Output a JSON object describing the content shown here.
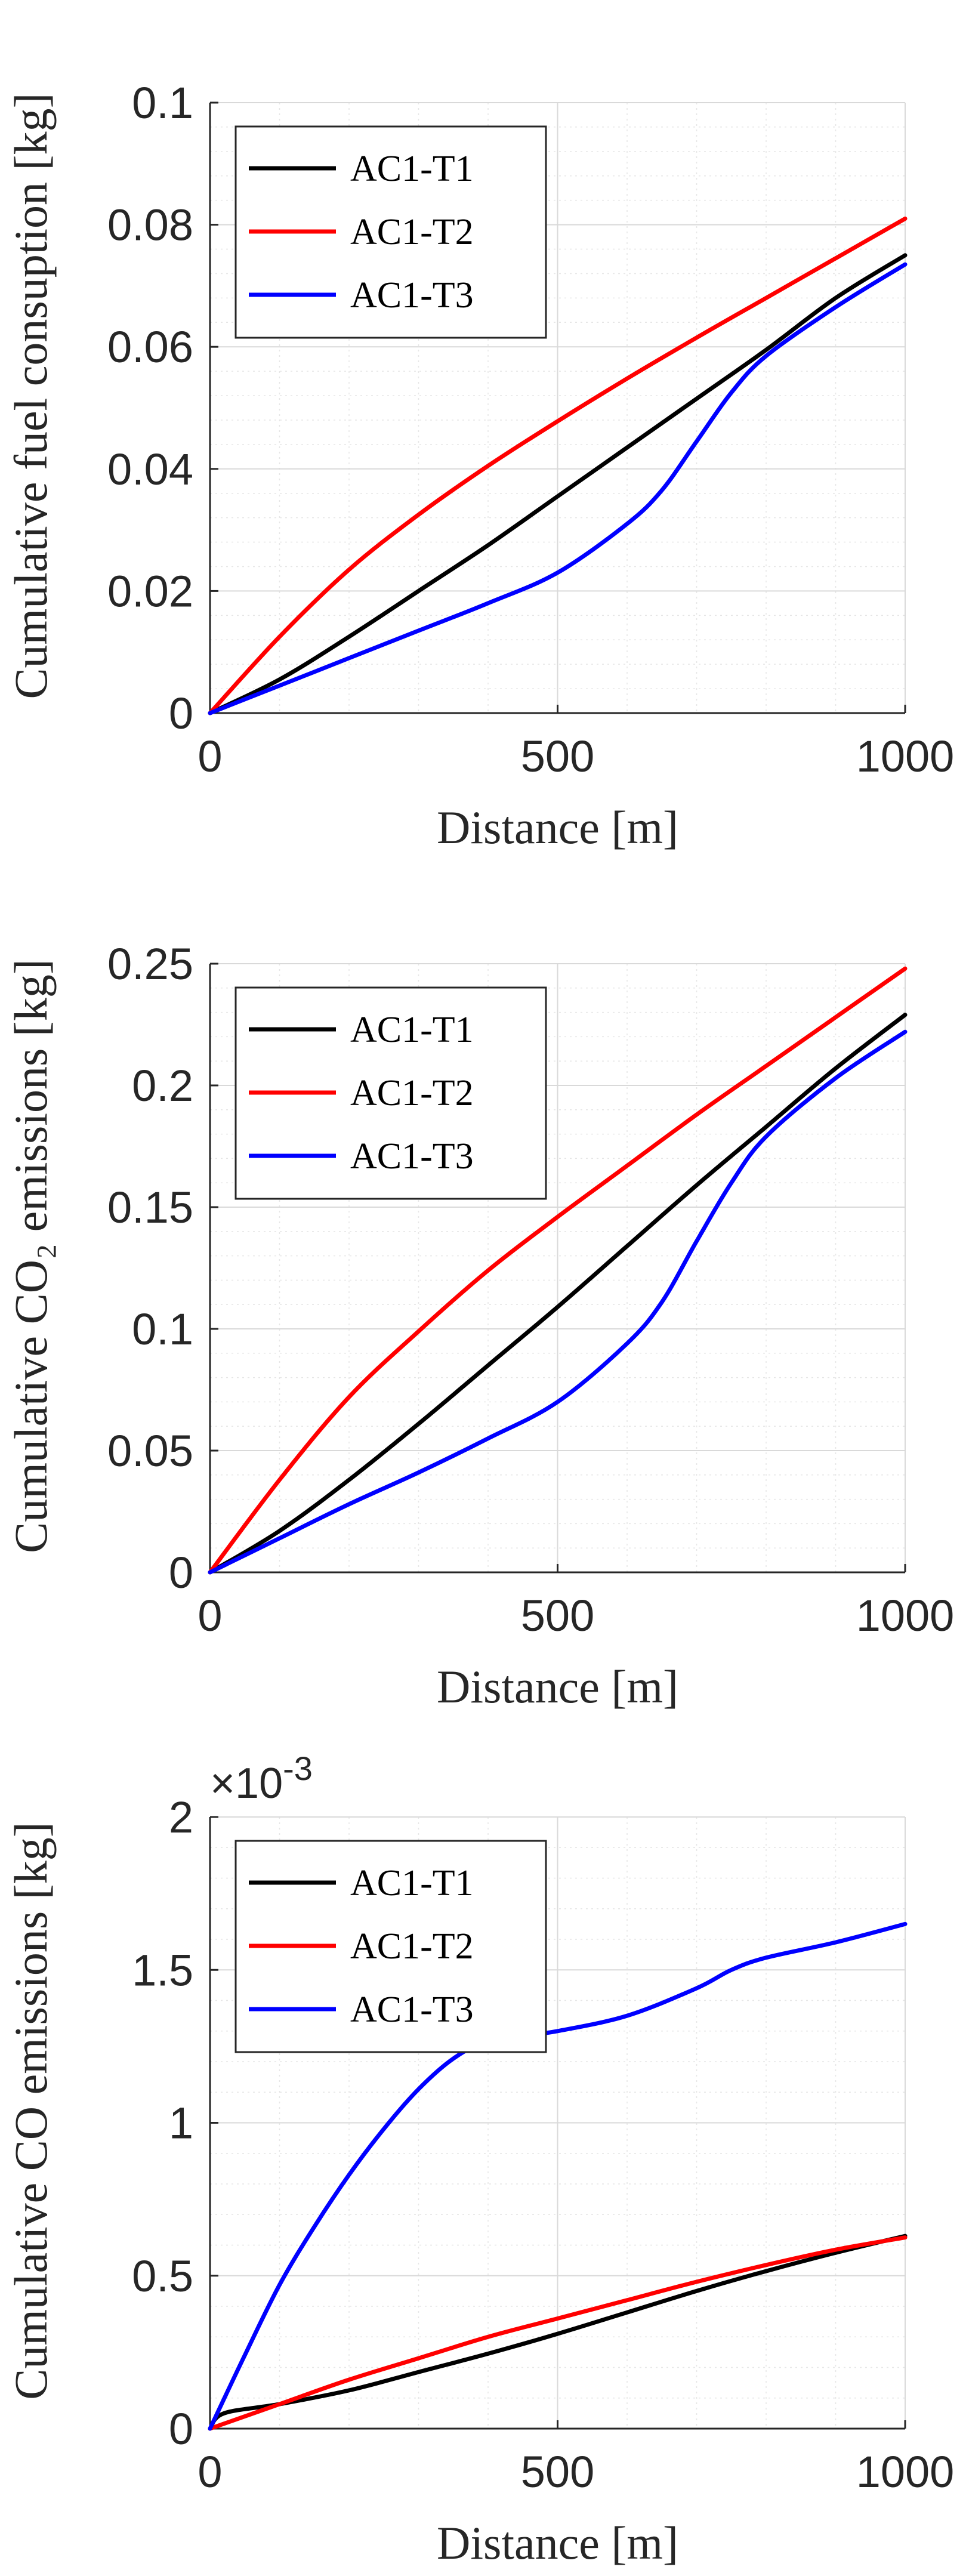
{
  "chart_data": [
    {
      "type": "line",
      "title": "",
      "xlabel": "Distance [m]",
      "ylabel": "Cumulative fuel consuption [kg]",
      "xlim": [
        0,
        1000
      ],
      "ylim": [
        0,
        0.1
      ],
      "xticks": [
        0,
        500,
        1000
      ],
      "xtick_labels": [
        "0",
        "500",
        "1000"
      ],
      "yticks": [
        0,
        0.02,
        0.04,
        0.06,
        0.08,
        0.1
      ],
      "ytick_labels": [
        "0",
        "0.02",
        "0.04",
        "0.06",
        "0.08",
        "0.1"
      ],
      "exponent_label": "",
      "grid": true,
      "legend_position": "top-left",
      "series": [
        {
          "name": "AC1-T1",
          "color": "#000000",
          "x": [
            0,
            100,
            200,
            300,
            400,
            500,
            600,
            700,
            800,
            900,
            1000
          ],
          "y": [
            0,
            0.0055,
            0.0125,
            0.02,
            0.0275,
            0.0355,
            0.0435,
            0.0515,
            0.0595,
            0.068,
            0.075
          ]
        },
        {
          "name": "AC1-T2",
          "color": "#ff0000",
          "x": [
            0,
            100,
            200,
            300,
            400,
            500,
            600,
            700,
            800,
            900,
            1000
          ],
          "y": [
            0,
            0.0125,
            0.0235,
            0.0325,
            0.0405,
            0.0478,
            0.0548,
            0.0615,
            0.068,
            0.0745,
            0.081
          ]
        },
        {
          "name": "AC1-T3",
          "color": "#0000ff",
          "x": [
            0,
            100,
            200,
            300,
            400,
            500,
            600,
            650,
            700,
            750,
            800,
            900,
            1000
          ],
          "y": [
            0,
            0.0045,
            0.009,
            0.0135,
            0.018,
            0.023,
            0.031,
            0.0365,
            0.0445,
            0.0525,
            0.0585,
            0.0665,
            0.0735
          ]
        }
      ]
    },
    {
      "type": "line",
      "title": "",
      "xlabel": "Distance [m]",
      "ylabel": "Cumulative CO₂ emissions [kg]",
      "xlim": [
        0,
        1000
      ],
      "ylim": [
        0,
        0.25
      ],
      "xticks": [
        0,
        500,
        1000
      ],
      "xtick_labels": [
        "0",
        "500",
        "1000"
      ],
      "yticks": [
        0,
        0.05,
        0.1,
        0.15,
        0.2,
        0.25
      ],
      "ytick_labels": [
        "0",
        "0.05",
        "0.1",
        "0.15",
        "0.2",
        "0.25"
      ],
      "exponent_label": "",
      "grid": true,
      "legend_position": "top-left",
      "series": [
        {
          "name": "AC1-T1",
          "color": "#000000",
          "x": [
            0,
            100,
            200,
            300,
            400,
            500,
            600,
            700,
            800,
            900,
            1000
          ],
          "y": [
            0,
            0.017,
            0.038,
            0.061,
            0.085,
            0.109,
            0.134,
            0.159,
            0.183,
            0.207,
            0.229
          ]
        },
        {
          "name": "AC1-T2",
          "color": "#ff0000",
          "x": [
            0,
            100,
            200,
            300,
            400,
            500,
            600,
            700,
            800,
            900,
            1000
          ],
          "y": [
            0,
            0.038,
            0.072,
            0.099,
            0.124,
            0.146,
            0.167,
            0.188,
            0.208,
            0.228,
            0.248
          ]
        },
        {
          "name": "AC1-T3",
          "color": "#0000ff",
          "x": [
            0,
            100,
            200,
            300,
            400,
            500,
            600,
            650,
            700,
            750,
            800,
            900,
            1000
          ],
          "y": [
            0,
            0.014,
            0.028,
            0.041,
            0.055,
            0.07,
            0.094,
            0.111,
            0.136,
            0.16,
            0.179,
            0.203,
            0.222
          ]
        }
      ]
    },
    {
      "type": "line",
      "title": "",
      "xlabel": "Distance [m]",
      "ylabel": "Cumulative CO emissions [kg]",
      "xlim": [
        0,
        1000
      ],
      "ylim": [
        0,
        2
      ],
      "xticks": [
        0,
        500,
        1000
      ],
      "xtick_labels": [
        "0",
        "500",
        "1000"
      ],
      "yticks": [
        0,
        0.5,
        1,
        1.5,
        2
      ],
      "ytick_labels": [
        "0",
        "0.5",
        "1",
        "1.5",
        "2"
      ],
      "exponent_label": "×10",
      "exponent_power": "-3",
      "grid": true,
      "legend_position": "top-left",
      "series": [
        {
          "name": "AC1-T1",
          "color": "#000000",
          "x": [
            0,
            20,
            100,
            200,
            300,
            400,
            500,
            600,
            700,
            800,
            900,
            1000
          ],
          "y": [
            0,
            0.05,
            0.08,
            0.125,
            0.185,
            0.245,
            0.31,
            0.38,
            0.45,
            0.515,
            0.575,
            0.63
          ]
        },
        {
          "name": "AC1-T2",
          "color": "#ff0000",
          "x": [
            0,
            100,
            200,
            300,
            400,
            500,
            600,
            700,
            800,
            900,
            1000
          ],
          "y": [
            0,
            0.08,
            0.16,
            0.23,
            0.3,
            0.36,
            0.42,
            0.48,
            0.535,
            0.585,
            0.625
          ]
        },
        {
          "name": "AC1-T3",
          "color": "#0000ff",
          "x": [
            0,
            50,
            100,
            150,
            200,
            250,
            300,
            350,
            400,
            450,
            500,
            600,
            700,
            750,
            800,
            900,
            1000
          ],
          "y": [
            0,
            0.24,
            0.47,
            0.66,
            0.83,
            0.98,
            1.11,
            1.21,
            1.27,
            1.285,
            1.3,
            1.35,
            1.44,
            1.5,
            1.54,
            1.59,
            1.65
          ]
        }
      ]
    }
  ]
}
